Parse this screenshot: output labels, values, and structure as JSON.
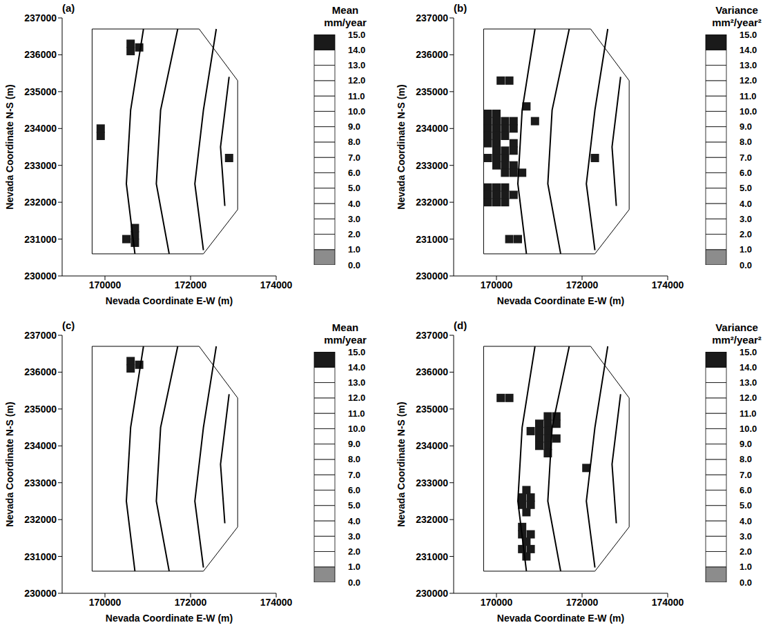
{
  "chart_data": [
    {
      "type": "map",
      "panel": "(a)",
      "xlabel": "Nevada Coordinate E-W (m)",
      "ylabel": "Nevada Coordinate N-S (m)",
      "xlim": [
        169000,
        174000
      ],
      "xticks": [
        170000,
        172000,
        174000
      ],
      "ylim": [
        230000,
        237000
      ],
      "yticks": [
        230000,
        231000,
        232000,
        233000,
        234000,
        235000,
        236000,
        237000
      ],
      "lines": [
        {
          "x": [
            169700,
            172200,
            173100,
            173100,
            172300,
            169700,
            169700
          ],
          "y": [
            236700,
            236700,
            235300,
            231800,
            230600,
            230600,
            236700
          ]
        },
        {
          "x": [
            170900,
            170600,
            170500,
            170700
          ],
          "y": [
            236700,
            234500,
            232500,
            230600
          ]
        },
        {
          "x": [
            171700,
            171300,
            171200,
            171500
          ],
          "y": [
            236700,
            234500,
            232500,
            230600
          ]
        },
        {
          "x": [
            172600,
            172300,
            172100,
            172300
          ],
          "y": [
            236700,
            234500,
            232500,
            230700
          ]
        },
        {
          "x": [
            172900,
            172700,
            172800
          ],
          "y": [
            235400,
            233500,
            231900
          ]
        }
      ],
      "cells": {
        "x": [
          170600,
          170600,
          170800,
          170700,
          170700,
          170500,
          170700,
          169900,
          169900,
          172900
        ],
        "y": [
          236300,
          236100,
          236200,
          231100,
          230900,
          231000,
          231300,
          233800,
          234000,
          233200
        ],
        "values": [
          15,
          15,
          15,
          15,
          15,
          15,
          15,
          15,
          15,
          15
        ]
      },
      "colorbar": {
        "label": "Mean",
        "units": "mm/year",
        "range": [
          0,
          15
        ],
        "ticks": [
          {
            "value": 0,
            "label": "0.0"
          },
          {
            "value": 1,
            "label": "1.0"
          },
          {
            "value": 2,
            "label": "2.0"
          },
          {
            "value": 3,
            "label": "3.0"
          },
          {
            "value": 4,
            "label": "4.0"
          },
          {
            "value": 5,
            "label": "5.0"
          },
          {
            "value": 6,
            "label": "6.0"
          },
          {
            "value": 7,
            "label": "7.0"
          },
          {
            "value": 8,
            "label": "8.0"
          },
          {
            "value": 9,
            "label": "9.0"
          },
          {
            "value": 10,
            "label": "10.0"
          },
          {
            "value": 11,
            "label": "11.0"
          },
          {
            "value": 12,
            "label": "12.0"
          },
          {
            "value": 13,
            "label": "13.0"
          },
          {
            "value": 14,
            "label": "14.0"
          },
          {
            "value": 15,
            "label": "15.0"
          }
        ],
        "colors": [
          "#8c8c8c",
          "#ffffff",
          "#ffffff",
          "#ffffff",
          "#ffffff",
          "#ffffff",
          "#ffffff",
          "#ffffff",
          "#ffffff",
          "#ffffff",
          "#ffffff",
          "#ffffff",
          "#ffffff",
          "#ffffff",
          "#1a1a1a"
        ]
      }
    },
    {
      "type": "map",
      "panel": "(b)",
      "xlabel": "Nevada Coordinate E-W (m)",
      "ylabel": "Nevada Coordinate N-S (m)",
      "xlim": [
        169000,
        174000
      ],
      "xticks": [
        170000,
        172000,
        174000
      ],
      "ylim": [
        230000,
        237000
      ],
      "yticks": [
        230000,
        231000,
        232000,
        233000,
        234000,
        235000,
        236000,
        237000
      ],
      "lines": [
        {
          "x": [
            169700,
            172200,
            173100,
            173100,
            172300,
            169700,
            169700
          ],
          "y": [
            236700,
            236700,
            235300,
            231800,
            230600,
            230600,
            236700
          ]
        },
        {
          "x": [
            170900,
            170600,
            170500,
            170700
          ],
          "y": [
            236700,
            234500,
            232500,
            230600
          ]
        },
        {
          "x": [
            171700,
            171300,
            171200,
            171500
          ],
          "y": [
            236700,
            234500,
            232500,
            230600
          ]
        },
        {
          "x": [
            172600,
            172300,
            172100,
            172300
          ],
          "y": [
            236700,
            234500,
            232500,
            230700
          ]
        },
        {
          "x": [
            172900,
            172700,
            172800
          ],
          "y": [
            235400,
            233500,
            231900
          ]
        }
      ],
      "cells": {
        "x": [
          169800,
          170000,
          169800,
          170000,
          170200,
          170400,
          169800,
          170000,
          170200,
          170400,
          169800,
          170000,
          170200,
          169800,
          170000,
          170400,
          170000,
          170200,
          170400,
          169800,
          170000,
          170200,
          170000,
          170200,
          170400,
          170200,
          170400,
          170600,
          169800,
          170000,
          170200,
          169800,
          170000,
          170200,
          170400,
          169800,
          170000,
          170200,
          170100,
          170300,
          170700,
          170900,
          170300,
          170500,
          172300
        ],
        "y": [
          234400,
          234400,
          234200,
          234200,
          234200,
          234200,
          234000,
          234000,
          234000,
          234000,
          233800,
          233800,
          233800,
          233600,
          233600,
          233600,
          233400,
          233400,
          233400,
          233200,
          233200,
          233200,
          233000,
          233000,
          233000,
          232800,
          232800,
          232800,
          232400,
          232400,
          232400,
          232200,
          232200,
          232200,
          232200,
          232000,
          232000,
          232000,
          235300,
          235300,
          234600,
          234200,
          231000,
          231000,
          233200
        ],
        "values": [
          15,
          15,
          15,
          15,
          15,
          15,
          15,
          15,
          15,
          15,
          15,
          15,
          15,
          15,
          15,
          15,
          15,
          15,
          15,
          15,
          15,
          15,
          15,
          15,
          15,
          15,
          15,
          15,
          15,
          15,
          15,
          15,
          15,
          15,
          15,
          15,
          15,
          15,
          15,
          15,
          15,
          15,
          15,
          15,
          15
        ]
      },
      "colorbar": {
        "label": "Variance",
        "units": "mm²/year²",
        "range": [
          0,
          15
        ],
        "ticks": [
          {
            "value": 0,
            "label": "0.0"
          },
          {
            "value": 1,
            "label": "1.0"
          },
          {
            "value": 2,
            "label": "2.0"
          },
          {
            "value": 3,
            "label": "3.0"
          },
          {
            "value": 4,
            "label": "4.0"
          },
          {
            "value": 5,
            "label": "5.0"
          },
          {
            "value": 6,
            "label": "6.0"
          },
          {
            "value": 7,
            "label": "7.0"
          },
          {
            "value": 8,
            "label": "8.0"
          },
          {
            "value": 9,
            "label": "9.0"
          },
          {
            "value": 10,
            "label": "10.0"
          },
          {
            "value": 11,
            "label": "11.0"
          },
          {
            "value": 12,
            "label": "12.0"
          },
          {
            "value": 13,
            "label": "13.0"
          },
          {
            "value": 14,
            "label": "14.0"
          },
          {
            "value": 15,
            "label": "15.0"
          }
        ],
        "colors": [
          "#8c8c8c",
          "#ffffff",
          "#ffffff",
          "#ffffff",
          "#ffffff",
          "#ffffff",
          "#ffffff",
          "#ffffff",
          "#ffffff",
          "#ffffff",
          "#ffffff",
          "#ffffff",
          "#ffffff",
          "#ffffff",
          "#1a1a1a"
        ]
      }
    },
    {
      "type": "map",
      "panel": "(c)",
      "xlabel": "Nevada Coordinate E-W (m)",
      "ylabel": "Nevada Coordinate N-S (m)",
      "xlim": [
        169000,
        174000
      ],
      "xticks": [
        170000,
        172000,
        174000
      ],
      "ylim": [
        230000,
        237000
      ],
      "yticks": [
        230000,
        231000,
        232000,
        233000,
        234000,
        235000,
        236000,
        237000
      ],
      "lines": [
        {
          "x": [
            169700,
            172200,
            173100,
            173100,
            172300,
            169700,
            169700
          ],
          "y": [
            236700,
            236700,
            235300,
            231800,
            230600,
            230600,
            236700
          ]
        },
        {
          "x": [
            170900,
            170600,
            170500,
            170700
          ],
          "y": [
            236700,
            234500,
            232500,
            230600
          ]
        },
        {
          "x": [
            171700,
            171300,
            171200,
            171500
          ],
          "y": [
            236700,
            234500,
            232500,
            230600
          ]
        },
        {
          "x": [
            172600,
            172300,
            172100,
            172300
          ],
          "y": [
            236700,
            234500,
            232500,
            230700
          ]
        },
        {
          "x": [
            172900,
            172700,
            172800
          ],
          "y": [
            235400,
            233500,
            231900
          ]
        }
      ],
      "cells": {
        "x": [
          170600,
          170600,
          170800
        ],
        "y": [
          236300,
          236100,
          236200
        ],
        "values": [
          15,
          15,
          15
        ]
      },
      "colorbar": {
        "label": "Mean",
        "units": "mm/year",
        "range": [
          0,
          15
        ],
        "ticks": [
          {
            "value": 0,
            "label": "0.0"
          },
          {
            "value": 1,
            "label": "1.0"
          },
          {
            "value": 2,
            "label": "2.0"
          },
          {
            "value": 3,
            "label": "3.0"
          },
          {
            "value": 4,
            "label": "4.0"
          },
          {
            "value": 5,
            "label": "5.0"
          },
          {
            "value": 6,
            "label": "6.0"
          },
          {
            "value": 7,
            "label": "7.0"
          },
          {
            "value": 8,
            "label": "8.0"
          },
          {
            "value": 9,
            "label": "9.0"
          },
          {
            "value": 10,
            "label": "10.0"
          },
          {
            "value": 11,
            "label": "11.0"
          },
          {
            "value": 12,
            "label": "12.0"
          },
          {
            "value": 13,
            "label": "13.0"
          },
          {
            "value": 14,
            "label": "14.0"
          },
          {
            "value": 15,
            "label": "15.0"
          }
        ],
        "colors": [
          "#8c8c8c",
          "#ffffff",
          "#ffffff",
          "#ffffff",
          "#ffffff",
          "#ffffff",
          "#ffffff",
          "#ffffff",
          "#ffffff",
          "#ffffff",
          "#ffffff",
          "#ffffff",
          "#ffffff",
          "#ffffff",
          "#1a1a1a"
        ]
      }
    },
    {
      "type": "map",
      "panel": "(d)",
      "xlabel": "Nevada Coordinate E-W (m)",
      "ylabel": "Nevada Coordinate N-S (m)",
      "xlim": [
        169000,
        174000
      ],
      "xticks": [
        170000,
        172000,
        174000
      ],
      "ylim": [
        230000,
        237000
      ],
      "yticks": [
        230000,
        231000,
        232000,
        233000,
        234000,
        235000,
        236000,
        237000
      ],
      "lines": [
        {
          "x": [
            169700,
            172200,
            173100,
            173100,
            172300,
            169700,
            169700
          ],
          "y": [
            236700,
            236700,
            235300,
            231800,
            230600,
            230600,
            236700
          ]
        },
        {
          "x": [
            170900,
            170600,
            170500,
            170700
          ],
          "y": [
            236700,
            234500,
            232500,
            230600
          ]
        },
        {
          "x": [
            171700,
            171300,
            171200,
            171500
          ],
          "y": [
            236700,
            234500,
            232500,
            230600
          ]
        },
        {
          "x": [
            172600,
            172300,
            172100,
            172300
          ],
          "y": [
            236700,
            234500,
            232500,
            230700
          ]
        },
        {
          "x": [
            172900,
            172700,
            172800
          ],
          "y": [
            235400,
            233500,
            231900
          ]
        }
      ],
      "cells": {
        "x": [
          170100,
          170300,
          171200,
          171400,
          171000,
          171200,
          171400,
          170800,
          171000,
          171200,
          171000,
          171200,
          171400,
          171000,
          171200,
          171200,
          172100,
          170700,
          170600,
          170800,
          170600,
          170800,
          170700,
          170600,
          170600,
          170800,
          170700,
          170600,
          170800,
          170700
        ],
        "y": [
          235300,
          235300,
          234800,
          234800,
          234600,
          234600,
          234600,
          234400,
          234400,
          234400,
          234200,
          234200,
          234200,
          234000,
          234000,
          233800,
          233400,
          232800,
          232600,
          232600,
          232400,
          232400,
          232200,
          231800,
          231600,
          231600,
          231400,
          231200,
          231200,
          231000
        ],
        "values": [
          15,
          15,
          15,
          15,
          15,
          15,
          15,
          15,
          15,
          15,
          15,
          15,
          15,
          15,
          15,
          15,
          15,
          15,
          15,
          15,
          15,
          15,
          15,
          15,
          15,
          15,
          15,
          15,
          15,
          15
        ]
      },
      "colorbar": {
        "label": "Variance",
        "units": "mm²/year²",
        "range": [
          0,
          15
        ],
        "ticks": [
          {
            "value": 0,
            "label": "0.0"
          },
          {
            "value": 1,
            "label": "1.0"
          },
          {
            "value": 2,
            "label": "2.0"
          },
          {
            "value": 3,
            "label": "3.0"
          },
          {
            "value": 4,
            "label": "4.0"
          },
          {
            "value": 5,
            "label": "5.0"
          },
          {
            "value": 6,
            "label": "6.0"
          },
          {
            "value": 7,
            "label": "7.0"
          },
          {
            "value": 8,
            "label": "8.0"
          },
          {
            "value": 9,
            "label": "9.0"
          },
          {
            "value": 10,
            "label": "10.0"
          },
          {
            "value": 11,
            "label": "11.0"
          },
          {
            "value": 12,
            "label": "12.0"
          },
          {
            "value": 13,
            "label": "13.0"
          },
          {
            "value": 14,
            "label": "14.0"
          },
          {
            "value": 15,
            "label": "15.0"
          }
        ],
        "colors": [
          "#8c8c8c",
          "#ffffff",
          "#ffffff",
          "#ffffff",
          "#ffffff",
          "#ffffff",
          "#ffffff",
          "#ffffff",
          "#ffffff",
          "#ffffff",
          "#ffffff",
          "#ffffff",
          "#ffffff",
          "#ffffff",
          "#1a1a1a"
        ]
      }
    }
  ]
}
